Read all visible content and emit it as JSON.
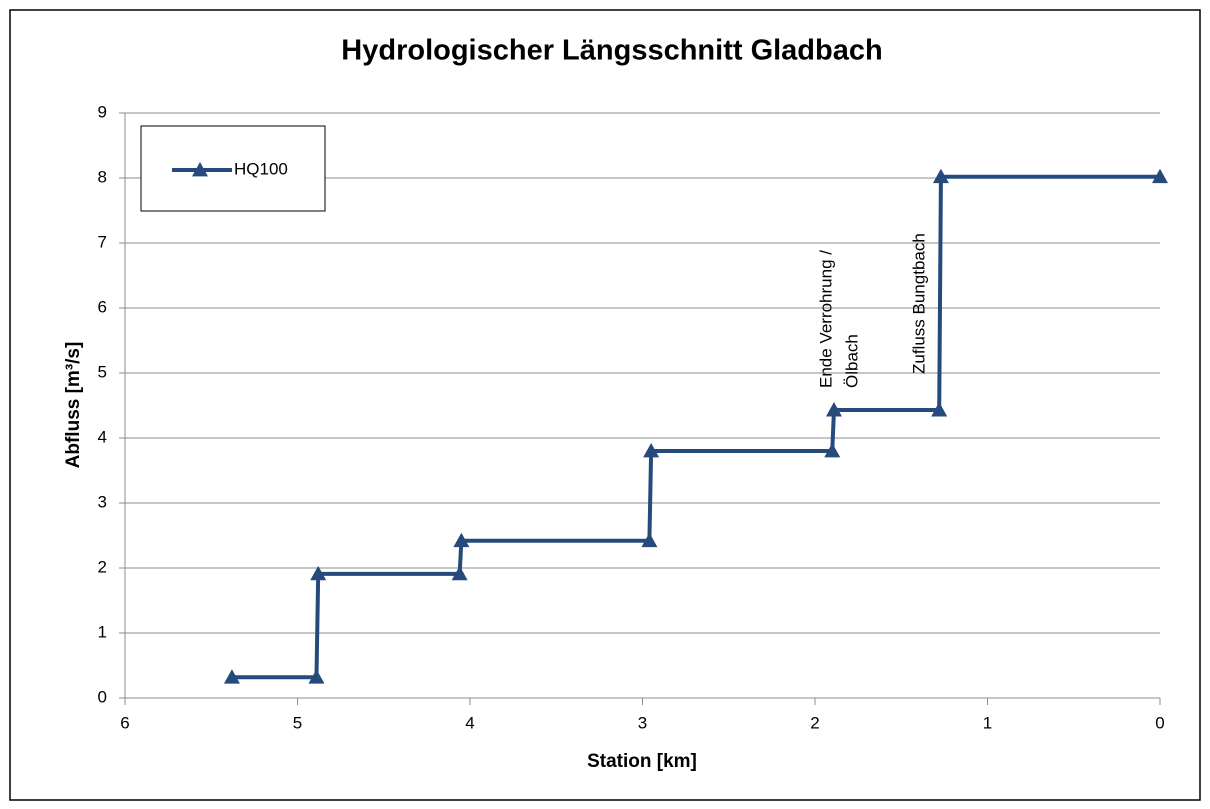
{
  "chart_data": {
    "type": "line",
    "title": "Hydrologischer Längsschnitt Gladbach",
    "xlabel": "Station [km]",
    "ylabel": "Abfluss [m³/s]",
    "x": [
      5.38,
      4.89,
      4.88,
      4.06,
      4.05,
      2.96,
      2.95,
      1.9,
      1.89,
      1.28,
      1.27,
      0
    ],
    "series": [
      {
        "name": "HQ100",
        "color": "#254a7b",
        "values": [
          0.32,
          0.32,
          1.91,
          1.91,
          2.42,
          2.42,
          3.8,
          3.8,
          4.43,
          4.43,
          8.02,
          8.02
        ]
      }
    ],
    "xlim": [
      6,
      0
    ],
    "xticks": [
      6,
      5,
      4,
      3,
      2,
      1,
      0
    ],
    "ylim": [
      0,
      9
    ],
    "yticks": [
      0,
      1,
      2,
      3,
      4,
      5,
      6,
      7,
      8,
      9
    ],
    "grid": true,
    "legend": "upper left",
    "annotations": [
      "Ende Verrohrung /",
      "Ölbach",
      "Zufluss Bungtbach"
    ]
  }
}
